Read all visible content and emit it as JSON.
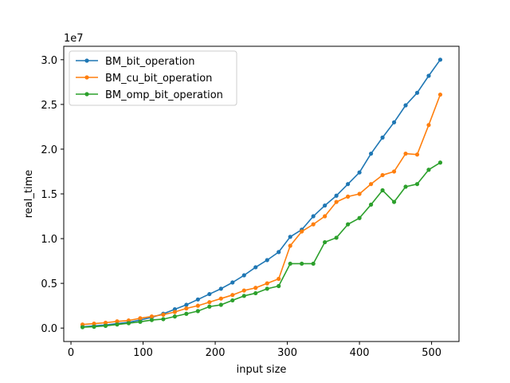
{
  "chart_data": {
    "type": "line",
    "xlabel": "input size",
    "ylabel": "real_time",
    "y_offset_label": "1e7",
    "xlim": [
      -10,
      538
    ],
    "ylim": [
      -1500000,
      31500000
    ],
    "x_ticks": [
      0,
      100,
      200,
      300,
      400,
      500
    ],
    "x_tick_labels": [
      "0",
      "100",
      "200",
      "300",
      "400",
      "500"
    ],
    "y_ticks": [
      0,
      5000000,
      10000000,
      15000000,
      20000000,
      25000000,
      30000000
    ],
    "y_tick_labels": [
      "0.0",
      "0.5",
      "1.0",
      "1.5",
      "2.0",
      "2.5",
      "3.0"
    ],
    "grid": false,
    "legend_position": "top-left",
    "x": [
      16,
      32,
      48,
      64,
      80,
      96,
      112,
      128,
      144,
      160,
      176,
      192,
      208,
      224,
      240,
      256,
      272,
      288,
      304,
      320,
      336,
      352,
      368,
      384,
      400,
      416,
      432,
      448,
      464,
      480,
      496,
      512
    ],
    "series": [
      {
        "name": "BM_bit_operation",
        "color": "#1f77b4",
        "values": [
          150000,
          250000,
          350000,
          500000,
          650000,
          900000,
          1200000,
          1600000,
          2100000,
          2600000,
          3200000,
          3800000,
          4400000,
          5100000,
          5900000,
          6800000,
          7600000,
          8500000,
          10200000,
          11000000,
          12500000,
          13700000,
          14800000,
          16100000,
          17400000,
          19500000,
          21300000,
          23000000,
          24900000,
          26300000,
          28200000,
          30000000
        ]
      },
      {
        "name": "BM_cu_bit_operation",
        "color": "#ff7f0e",
        "values": [
          400000,
          500000,
          600000,
          750000,
          850000,
          1100000,
          1300000,
          1500000,
          1800000,
          2200000,
          2500000,
          2900000,
          3300000,
          3700000,
          4200000,
          4500000,
          5000000,
          5500000,
          9200000,
          10800000,
          11600000,
          12500000,
          14100000,
          14700000,
          15000000,
          16100000,
          17100000,
          17500000,
          19500000,
          19400000,
          22700000,
          26100000
        ]
      },
      {
        "name": "BM_omp_bit_operation",
        "color": "#2ca02c",
        "values": [
          100000,
          150000,
          250000,
          400000,
          550000,
          700000,
          900000,
          1000000,
          1300000,
          1600000,
          1900000,
          2400000,
          2600000,
          3100000,
          3600000,
          3900000,
          4400000,
          4700000,
          7200000,
          7200000,
          7200000,
          9600000,
          10100000,
          11600000,
          12300000,
          13800000,
          15400000,
          14100000,
          15800000,
          16100000,
          17700000,
          18500000
        ]
      }
    ]
  }
}
